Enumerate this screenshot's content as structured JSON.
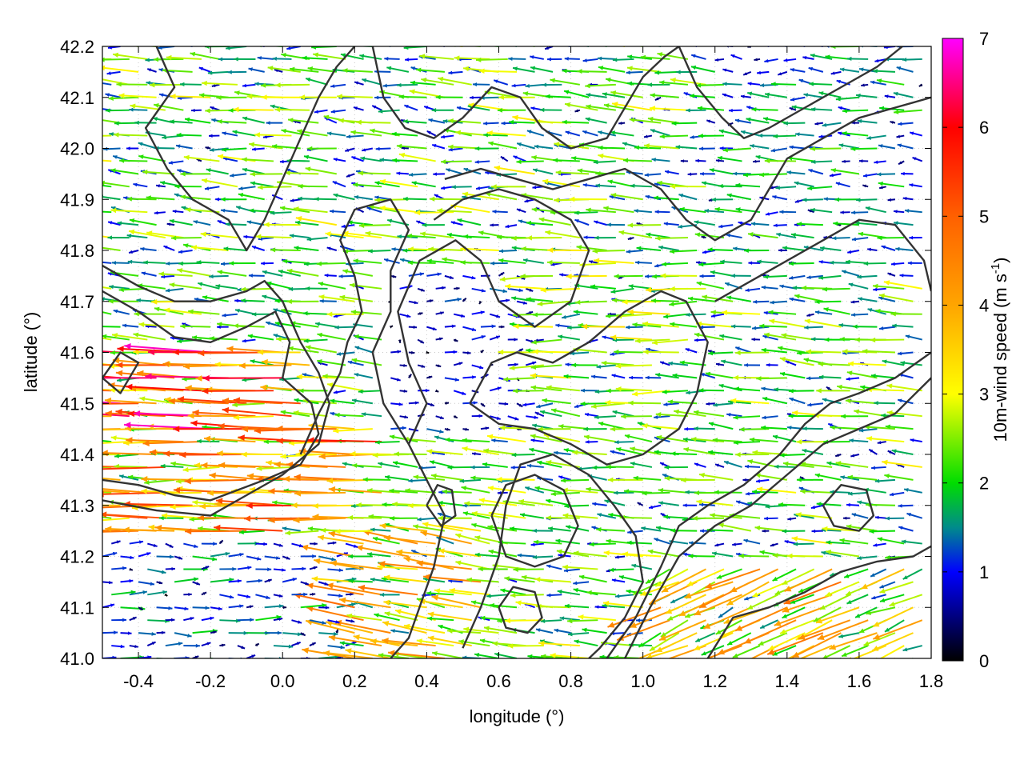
{
  "chart_data": {
    "type": "vector-field",
    "xlabel": "longitude (°)",
    "ylabel": "latitude (°)",
    "colorbar_label": "10m-wind speed (m s",
    "colorbar_label_sup": "-1",
    "colorbar_label_end": ")",
    "xlim": [
      -0.5,
      1.8
    ],
    "ylim": [
      41.0,
      42.2
    ],
    "x_ticks": [
      {
        "value": -0.4,
        "label": "-0.4"
      },
      {
        "value": -0.2,
        "label": "-0.2"
      },
      {
        "value": 0.0,
        "label": "0.0"
      },
      {
        "value": 0.2,
        "label": "0.2"
      },
      {
        "value": 0.4,
        "label": "0.4"
      },
      {
        "value": 0.6,
        "label": "0.6"
      },
      {
        "value": 0.8,
        "label": "0.8"
      },
      {
        "value": 1.0,
        "label": "1.0"
      },
      {
        "value": 1.2,
        "label": "1.2"
      },
      {
        "value": 1.4,
        "label": "1.4"
      },
      {
        "value": 1.6,
        "label": "1.6"
      },
      {
        "value": 1.8,
        "label": "1.8"
      }
    ],
    "y_ticks": [
      {
        "value": 41.0,
        "label": "41.0"
      },
      {
        "value": 41.1,
        "label": "41.1"
      },
      {
        "value": 41.2,
        "label": "41.2"
      },
      {
        "value": 41.3,
        "label": "41.3"
      },
      {
        "value": 41.4,
        "label": "41.4"
      },
      {
        "value": 41.5,
        "label": "41.5"
      },
      {
        "value": 41.6,
        "label": "41.6"
      },
      {
        "value": 41.7,
        "label": "41.7"
      },
      {
        "value": 41.8,
        "label": "41.8"
      },
      {
        "value": 41.9,
        "label": "41.9"
      },
      {
        "value": 42.0,
        "label": "42.0"
      },
      {
        "value": 42.1,
        "label": "42.1"
      },
      {
        "value": 42.2,
        "label": "42.2"
      }
    ],
    "colorbar_ticks": [
      {
        "value": 0,
        "label": "0"
      },
      {
        "value": 1,
        "label": "1"
      },
      {
        "value": 2,
        "label": "2"
      },
      {
        "value": 3,
        "label": "3"
      },
      {
        "value": 4,
        "label": "4"
      },
      {
        "value": 5,
        "label": "5"
      },
      {
        "value": 6,
        "label": "6"
      },
      {
        "value": 7,
        "label": "7"
      }
    ],
    "colorbar_range": [
      0,
      7
    ],
    "colormap_stops": [
      {
        "value": 0,
        "color": "#000000"
      },
      {
        "value": 1,
        "color": "#0000ff"
      },
      {
        "value": 1.5,
        "color": "#008b8b"
      },
      {
        "value": 2,
        "color": "#00dd00"
      },
      {
        "value": 3,
        "color": "#ffff00"
      },
      {
        "value": 4,
        "color": "#ffa500"
      },
      {
        "value": 5,
        "color": "#ff6000"
      },
      {
        "value": 6,
        "color": "#ff0000"
      },
      {
        "value": 7,
        "color": "#ff00ff"
      }
    ],
    "grid": true,
    "contour_color": "#333333",
    "vector_grid": {
      "lon_start": -0.5,
      "lon_step": 0.05,
      "lat_start": 41.0,
      "lat_step": 0.025
    },
    "regions": [
      {
        "lon": [
          -0.5,
          0.1
        ],
        "lat": [
          41.45,
          41.62
        ],
        "u": -5.2,
        "v": 0.2
      },
      {
        "lon": [
          -0.5,
          0.3
        ],
        "lat": [
          41.25,
          41.45
        ],
        "u": -4.2,
        "v": 0.1
      },
      {
        "lon": [
          0.2,
          0.6
        ],
        "lat": [
          41.0,
          41.25
        ],
        "u": -3.5,
        "v": 0.6
      },
      {
        "lon": [
          1.05,
          1.8
        ],
        "lat": [
          41.0,
          41.18
        ],
        "u": -3.3,
        "v": -1.4
      },
      {
        "lon": [
          -0.5,
          0.3
        ],
        "lat": [
          41.0,
          41.25
        ],
        "u": 1.3,
        "v": 0.0
      },
      {
        "lon": [
          0.3,
          0.7
        ],
        "lat": [
          41.45,
          41.75
        ],
        "u": 0.8,
        "v": 0.0
      },
      {
        "lon": [
          1.2,
          1.8
        ],
        "lat": [
          41.75,
          42.2
        ],
        "u": -1.6,
        "v": 0.1
      },
      {
        "lon": [
          0.6,
          1.2
        ],
        "lat": [
          41.5,
          41.8
        ],
        "u": -2.4,
        "v": 0.0
      },
      {
        "lon": [
          -0.5,
          1.8
        ],
        "lat": [
          41.0,
          42.2
        ],
        "u": -2.2,
        "v": 0.2
      }
    ],
    "contours": [
      [
        [
          -0.5,
          41.72
        ],
        [
          -0.4,
          41.68
        ],
        [
          -0.3,
          41.63
        ],
        [
          -0.2,
          41.62
        ],
        [
          -0.1,
          41.65
        ],
        [
          -0.02,
          41.68
        ],
        [
          0.02,
          41.62
        ],
        [
          0.0,
          41.55
        ],
        [
          0.08,
          41.5
        ],
        [
          0.1,
          41.44
        ],
        [
          0.05,
          41.38
        ],
        [
          -0.05,
          41.35
        ],
        [
          -0.2,
          41.31
        ],
        [
          -0.3,
          41.32
        ],
        [
          -0.4,
          41.34
        ],
        [
          -0.5,
          41.35
        ]
      ],
      [
        [
          -0.5,
          41.77
        ],
        [
          -0.4,
          41.73
        ],
        [
          -0.3,
          41.7
        ],
        [
          -0.2,
          41.7
        ],
        [
          -0.1,
          41.72
        ],
        [
          -0.05,
          41.74
        ],
        [
          0.0,
          41.7
        ],
        [
          0.05,
          41.62
        ],
        [
          0.1,
          41.56
        ],
        [
          0.13,
          41.5
        ],
        [
          0.1,
          41.42
        ],
        [
          0.0,
          41.36
        ],
        [
          -0.1,
          41.32
        ],
        [
          -0.2,
          41.28
        ],
        [
          -0.35,
          41.29
        ],
        [
          -0.5,
          41.31
        ]
      ],
      [
        [
          0.05,
          41.4
        ],
        [
          0.1,
          41.48
        ],
        [
          0.16,
          41.56
        ],
        [
          0.18,
          41.62
        ],
        [
          0.22,
          41.68
        ],
        [
          0.2,
          41.75
        ],
        [
          0.16,
          41.82
        ],
        [
          0.2,
          41.88
        ],
        [
          0.3,
          41.9
        ],
        [
          0.35,
          41.84
        ],
        [
          0.3,
          41.76
        ],
        [
          0.3,
          41.68
        ],
        [
          0.25,
          41.6
        ],
        [
          0.28,
          41.5
        ],
        [
          0.35,
          41.42
        ],
        [
          0.4,
          41.35
        ],
        [
          0.45,
          41.28
        ],
        [
          0.42,
          41.18
        ],
        [
          0.38,
          41.1
        ],
        [
          0.35,
          41.04
        ],
        [
          0.3,
          41.0
        ]
      ],
      [
        [
          0.35,
          41.42
        ],
        [
          0.4,
          41.5
        ],
        [
          0.35,
          41.58
        ],
        [
          0.32,
          41.68
        ],
        [
          0.38,
          41.78
        ],
        [
          0.48,
          41.82
        ],
        [
          0.55,
          41.78
        ],
        [
          0.6,
          41.7
        ],
        [
          0.7,
          41.65
        ],
        [
          0.8,
          41.7
        ],
        [
          0.85,
          41.8
        ],
        [
          0.8,
          41.86
        ],
        [
          0.7,
          41.9
        ],
        [
          0.6,
          41.92
        ],
        [
          0.5,
          41.9
        ],
        [
          0.42,
          41.86
        ]
      ],
      [
        [
          0.52,
          41.5
        ],
        [
          0.58,
          41.58
        ],
        [
          0.65,
          41.6
        ],
        [
          0.75,
          41.58
        ],
        [
          0.85,
          41.62
        ],
        [
          0.95,
          41.68
        ],
        [
          1.05,
          41.72
        ],
        [
          1.12,
          41.7
        ],
        [
          1.18,
          41.62
        ],
        [
          1.15,
          41.52
        ],
        [
          1.1,
          41.45
        ],
        [
          1.0,
          41.4
        ],
        [
          0.9,
          41.38
        ],
        [
          0.8,
          41.42
        ],
        [
          0.7,
          41.45
        ],
        [
          0.6,
          41.46
        ],
        [
          0.52,
          41.5
        ]
      ],
      [
        [
          0.5,
          41.02
        ],
        [
          0.55,
          41.1
        ],
        [
          0.6,
          41.2
        ],
        [
          0.62,
          41.3
        ],
        [
          0.66,
          41.38
        ],
        [
          0.75,
          41.4
        ],
        [
          0.85,
          41.36
        ],
        [
          0.92,
          41.3
        ],
        [
          0.98,
          41.24
        ],
        [
          1.0,
          41.15
        ],
        [
          0.95,
          41.08
        ],
        [
          0.88,
          41.02
        ],
        [
          0.85,
          41.0
        ]
      ],
      [
        [
          0.9,
          41.0
        ],
        [
          0.98,
          41.08
        ],
        [
          1.05,
          41.18
        ],
        [
          1.1,
          41.26
        ],
        [
          1.18,
          41.3
        ],
        [
          1.28,
          41.34
        ],
        [
          1.38,
          41.4
        ],
        [
          1.45,
          41.46
        ],
        [
          1.52,
          41.5
        ],
        [
          1.6,
          41.52
        ],
        [
          1.7,
          41.55
        ],
        [
          1.8,
          41.6
        ]
      ],
      [
        [
          0.95,
          41.0
        ],
        [
          1.02,
          41.1
        ],
        [
          1.1,
          41.2
        ],
        [
          1.2,
          41.26
        ],
        [
          1.3,
          41.3
        ],
        [
          1.4,
          41.36
        ],
        [
          1.5,
          41.42
        ],
        [
          1.6,
          41.45
        ],
        [
          1.7,
          41.48
        ],
        [
          1.8,
          41.55
        ]
      ],
      [
        [
          1.18,
          41.0
        ],
        [
          1.25,
          41.08
        ],
        [
          1.35,
          41.1
        ],
        [
          1.45,
          41.13
        ],
        [
          1.55,
          41.17
        ],
        [
          1.65,
          41.19
        ],
        [
          1.75,
          41.2
        ],
        [
          1.8,
          41.22
        ]
      ],
      [
        [
          1.2,
          41.7
        ],
        [
          1.3,
          41.74
        ],
        [
          1.4,
          41.78
        ],
        [
          1.5,
          41.82
        ],
        [
          1.6,
          41.86
        ],
        [
          1.7,
          41.85
        ],
        [
          1.78,
          41.78
        ],
        [
          1.8,
          41.72
        ]
      ],
      [
        [
          -0.35,
          42.2
        ],
        [
          -0.3,
          42.12
        ],
        [
          -0.38,
          42.04
        ],
        [
          -0.32,
          41.96
        ],
        [
          -0.25,
          41.9
        ],
        [
          -0.15,
          41.86
        ],
        [
          -0.1,
          41.8
        ],
        [
          -0.05,
          41.86
        ],
        [
          0.0,
          41.94
        ],
        [
          0.05,
          42.02
        ],
        [
          0.1,
          42.1
        ],
        [
          0.15,
          42.16
        ],
        [
          0.2,
          42.2
        ]
      ],
      [
        [
          0.25,
          42.2
        ],
        [
          0.28,
          42.1
        ],
        [
          0.34,
          42.04
        ],
        [
          0.42,
          42.02
        ],
        [
          0.5,
          42.06
        ],
        [
          0.58,
          42.12
        ],
        [
          0.66,
          42.1
        ],
        [
          0.72,
          42.04
        ],
        [
          0.8,
          42.0
        ],
        [
          0.9,
          42.02
        ],
        [
          0.95,
          42.08
        ],
        [
          1.0,
          42.14
        ],
        [
          1.06,
          42.18
        ],
        [
          1.1,
          42.2
        ]
      ],
      [
        [
          0.45,
          41.94
        ],
        [
          0.55,
          41.96
        ],
        [
          0.65,
          41.94
        ],
        [
          0.75,
          41.92
        ],
        [
          0.85,
          41.94
        ],
        [
          0.95,
          41.96
        ],
        [
          1.05,
          41.92
        ],
        [
          1.12,
          41.86
        ],
        [
          1.2,
          41.82
        ],
        [
          1.3,
          41.86
        ],
        [
          1.35,
          41.92
        ],
        [
          1.4,
          41.98
        ],
        [
          1.5,
          42.02
        ],
        [
          1.6,
          42.06
        ],
        [
          1.7,
          42.08
        ],
        [
          1.8,
          42.1
        ]
      ],
      [
        [
          1.1,
          42.2
        ],
        [
          1.15,
          42.12
        ],
        [
          1.22,
          42.06
        ],
        [
          1.28,
          42.02
        ],
        [
          1.35,
          42.04
        ],
        [
          1.45,
          42.08
        ],
        [
          1.55,
          42.12
        ],
        [
          1.65,
          42.16
        ],
        [
          1.72,
          42.2
        ]
      ],
      [
        [
          0.58,
          41.28
        ],
        [
          0.62,
          41.34
        ],
        [
          0.7,
          41.36
        ],
        [
          0.78,
          41.33
        ],
        [
          0.82,
          41.26
        ],
        [
          0.78,
          41.2
        ],
        [
          0.7,
          41.18
        ],
        [
          0.62,
          41.2
        ],
        [
          0.58,
          41.28
        ]
      ],
      [
        [
          0.4,
          41.3
        ],
        [
          0.43,
          41.34
        ],
        [
          0.47,
          41.33
        ],
        [
          0.48,
          41.28
        ],
        [
          0.44,
          41.26
        ],
        [
          0.4,
          41.3
        ]
      ],
      [
        [
          0.6,
          41.1
        ],
        [
          0.64,
          41.14
        ],
        [
          0.7,
          41.13
        ],
        [
          0.72,
          41.08
        ],
        [
          0.68,
          41.05
        ],
        [
          0.62,
          41.06
        ],
        [
          0.6,
          41.1
        ]
      ],
      [
        [
          -0.5,
          41.55
        ],
        [
          -0.45,
          41.6
        ],
        [
          -0.4,
          41.58
        ],
        [
          -0.45,
          41.52
        ],
        [
          -0.5,
          41.55
        ]
      ],
      [
        [
          1.5,
          41.3
        ],
        [
          1.55,
          41.34
        ],
        [
          1.62,
          41.33
        ],
        [
          1.64,
          41.28
        ],
        [
          1.6,
          41.25
        ],
        [
          1.53,
          41.26
        ],
        [
          1.5,
          41.3
        ]
      ]
    ]
  }
}
